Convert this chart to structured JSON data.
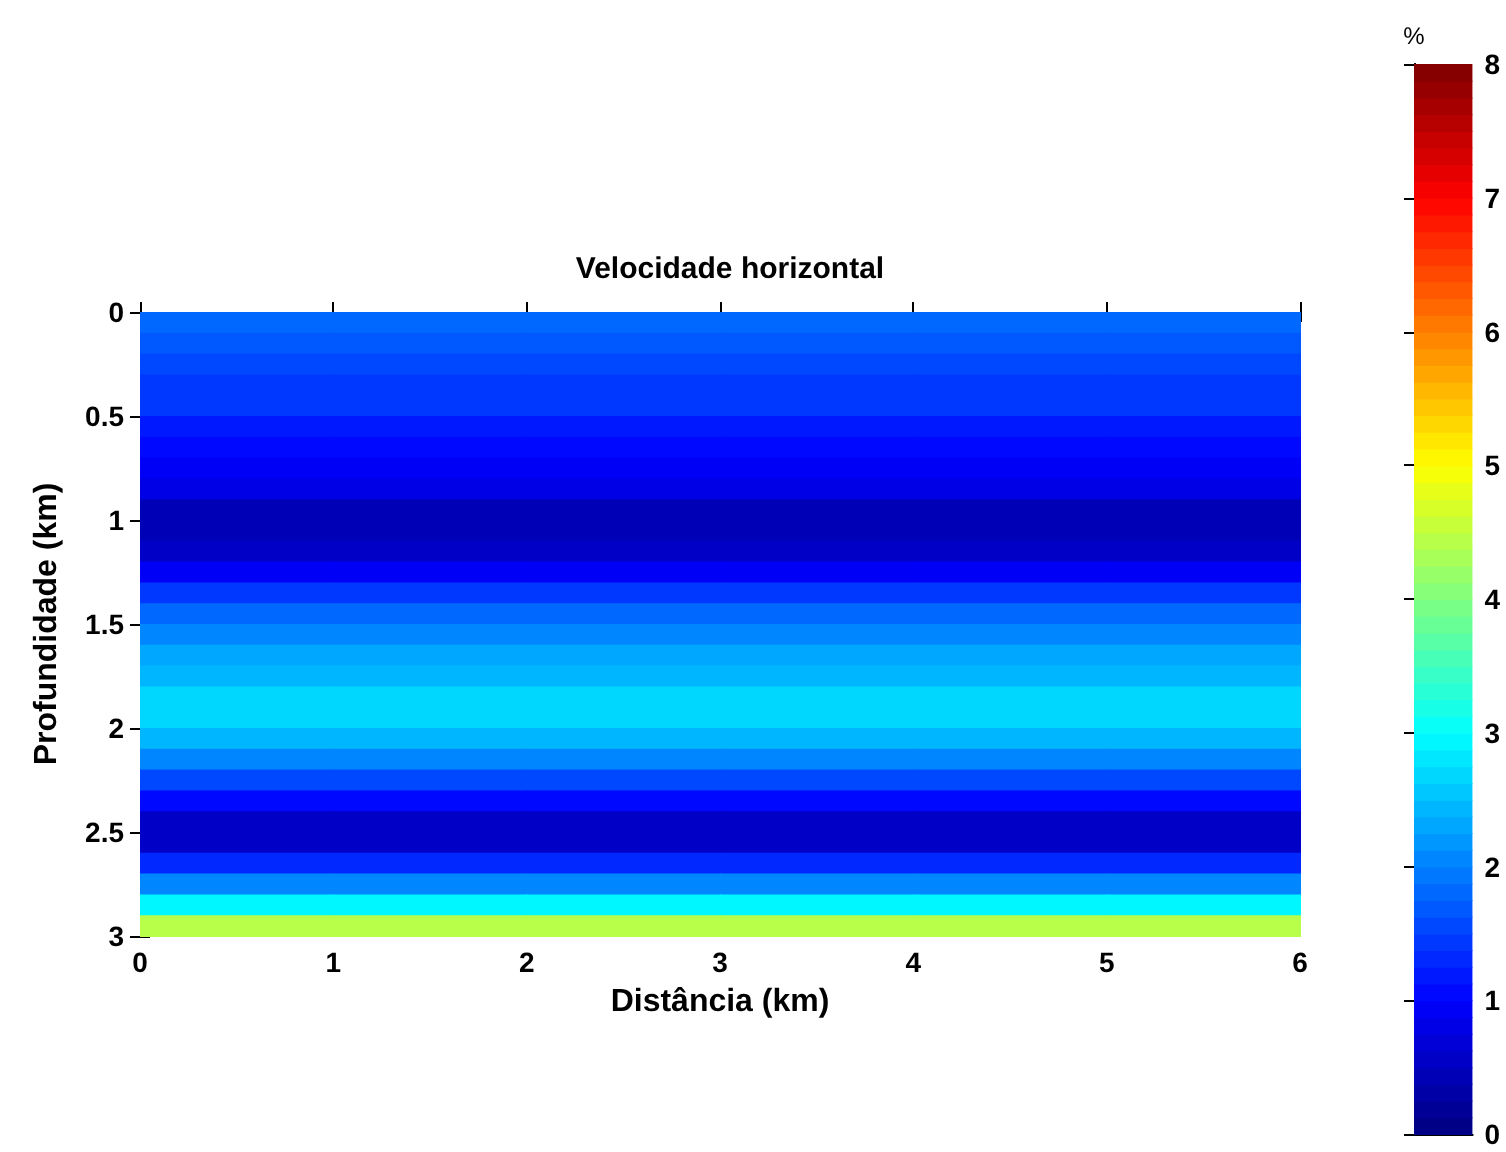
{
  "chart_data": {
    "type": "heatmap",
    "title": "Velocidade horizontal",
    "xlabel": "Distância (km)",
    "ylabel": "Profundidade (km)",
    "clabel": "%",
    "xlim": [
      0,
      6
    ],
    "xticks": [
      0,
      1,
      2,
      3,
      4,
      5,
      6
    ],
    "ylim": [
      3,
      0
    ],
    "yticks": [
      0,
      0.5,
      1,
      1.5,
      2,
      2.5,
      3
    ],
    "clim": [
      0,
      8
    ],
    "cticks": [
      0,
      1,
      2,
      3,
      4,
      5,
      6,
      7,
      8
    ],
    "cells": [
      [
        1.8,
        1.8,
        1.8,
        1.8,
        1.8,
        1.8
      ],
      [
        1.7,
        1.7,
        1.7,
        1.7,
        1.7,
        1.7
      ],
      [
        1.6,
        1.6,
        1.6,
        1.6,
        1.6,
        1.6
      ],
      [
        1.5,
        1.5,
        1.5,
        1.5,
        1.5,
        1.5
      ],
      [
        1.4,
        1.4,
        1.4,
        1.4,
        1.4,
        1.4
      ],
      [
        1.2,
        1.2,
        1.2,
        1.2,
        1.2,
        1.2
      ],
      [
        1.1,
        1.1,
        1.1,
        1.1,
        1.1,
        1.1
      ],
      [
        1.0,
        1.0,
        1.0,
        1.0,
        1.0,
        1.0
      ],
      [
        0.8,
        0.8,
        0.8,
        0.8,
        0.8,
        0.8
      ],
      [
        0.5,
        0.5,
        0.5,
        0.5,
        0.5,
        0.5
      ],
      [
        0.4,
        0.4,
        0.4,
        0.4,
        0.4,
        0.4
      ],
      [
        0.6,
        0.6,
        0.6,
        0.6,
        0.6,
        0.6
      ],
      [
        1.0,
        1.0,
        1.0,
        1.0,
        1.0,
        1.0
      ],
      [
        1.4,
        1.4,
        1.4,
        1.4,
        1.4,
        1.4
      ],
      [
        1.8,
        1.8,
        1.8,
        1.8,
        1.8,
        1.8
      ],
      [
        2.1,
        2.1,
        2.1,
        2.1,
        2.1,
        2.1
      ],
      [
        2.3,
        2.3,
        2.3,
        2.3,
        2.3,
        2.3
      ],
      [
        2.5,
        2.5,
        2.5,
        2.5,
        2.5,
        2.5
      ],
      [
        2.7,
        2.7,
        2.7,
        2.7,
        2.7,
        2.7
      ],
      [
        2.7,
        2.7,
        2.7,
        2.7,
        2.7,
        2.7
      ],
      [
        2.5,
        2.5,
        2.5,
        2.5,
        2.5,
        2.5
      ],
      [
        2.1,
        2.1,
        2.1,
        2.1,
        2.1,
        2.1
      ],
      [
        1.6,
        1.6,
        1.6,
        1.6,
        1.6,
        1.6
      ],
      [
        1.1,
        1.1,
        1.1,
        1.1,
        1.1,
        1.1
      ],
      [
        0.6,
        0.6,
        0.6,
        0.6,
        0.6,
        0.6
      ],
      [
        0.6,
        0.6,
        0.6,
        0.6,
        0.6,
        0.6
      ],
      [
        1.3,
        1.3,
        1.3,
        1.3,
        1.3,
        1.3
      ],
      [
        2.1,
        2.1,
        2.1,
        2.1,
        2.1,
        2.1
      ],
      [
        3.0,
        3.0,
        3.0,
        3.0,
        3.0,
        3.0
      ],
      [
        4.4,
        4.4,
        4.4,
        4.4,
        4.4,
        4.4
      ]
    ]
  }
}
